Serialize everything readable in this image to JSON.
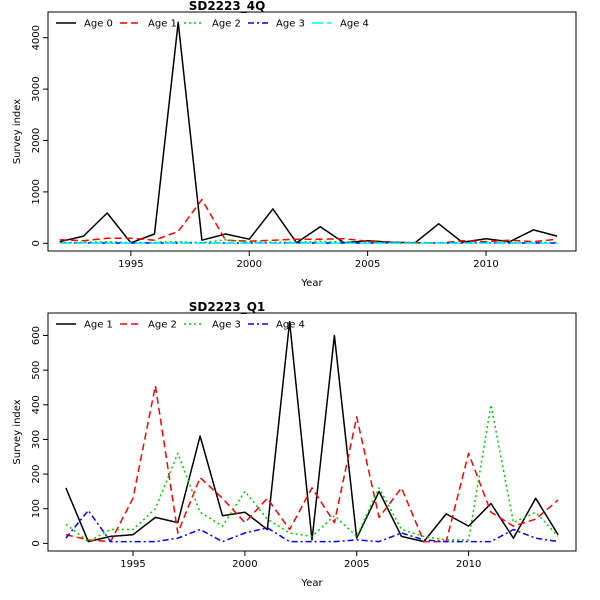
{
  "chart_data": [
    {
      "type": "line",
      "title": "SD2223_4Q",
      "xlabel": "Year",
      "ylabel": "Survey index",
      "xlim": [
        1991.5,
        2013.8
      ],
      "ylim": [
        -150,
        4500
      ],
      "xticks": [
        1995,
        2000,
        2005,
        2010
      ],
      "yticks": [
        0,
        1000,
        2000,
        3000,
        4000
      ],
      "legend_position": "top-left",
      "grid": false,
      "x": [
        1992,
        1993,
        1994,
        1995,
        1996,
        1997,
        1998,
        1999,
        2000,
        2001,
        2002,
        2003,
        2004,
        2005,
        2006,
        2007,
        2008,
        2009,
        2010,
        2011,
        2012,
        2013
      ],
      "series": [
        {
          "name": "Age 0",
          "color": "#000000",
          "dash": "solid",
          "values": [
            30,
            140,
            590,
            10,
            180,
            4300,
            60,
            180,
            80,
            670,
            10,
            320,
            10,
            50,
            20,
            10,
            380,
            20,
            90,
            30,
            260,
            140
          ]
        },
        {
          "name": "Age 1",
          "color": "#ff0000",
          "dash": "dashed",
          "values": [
            70,
            50,
            100,
            100,
            60,
            230,
            850,
            60,
            40,
            60,
            80,
            80,
            90,
            40,
            10,
            10,
            0,
            50,
            30,
            60,
            30,
            80
          ]
        },
        {
          "name": "Age 2",
          "color": "#00cd00",
          "dash": "dotted",
          "values": [
            10,
            20,
            30,
            10,
            20,
            30,
            10,
            70,
            20,
            20,
            20,
            40,
            20,
            10,
            10,
            10,
            5,
            10,
            10,
            20,
            10,
            20
          ]
        },
        {
          "name": "Age 3",
          "color": "#0000ff",
          "dash": "dashdot",
          "values": [
            5,
            5,
            5,
            5,
            5,
            5,
            5,
            5,
            5,
            5,
            5,
            5,
            5,
            5,
            5,
            5,
            5,
            5,
            5,
            5,
            5,
            5
          ]
        },
        {
          "name": "Age 4",
          "color": "#00ffff",
          "dash": "longdash",
          "values": [
            2,
            2,
            2,
            2,
            2,
            2,
            2,
            2,
            2,
            2,
            2,
            2,
            2,
            2,
            2,
            2,
            2,
            2,
            2,
            2,
            2,
            2
          ]
        }
      ]
    },
    {
      "type": "line",
      "title": "SD2223_Q1",
      "xlabel": "Year",
      "ylabel": "Survey index",
      "xlim": [
        1991.2,
        2014.8
      ],
      "ylim": [
        -22,
        665
      ],
      "xticks": [
        1995,
        2000,
        2005,
        2010
      ],
      "yticks": [
        0,
        100,
        200,
        300,
        400,
        500,
        600
      ],
      "legend_position": "top-left",
      "grid": false,
      "x": [
        1992,
        1993,
        1994,
        1995,
        1996,
        1997,
        1998,
        1999,
        2000,
        2001,
        2002,
        2003,
        2004,
        2005,
        2006,
        2007,
        2008,
        2009,
        2010,
        2011,
        2012,
        2013,
        2014
      ],
      "series": [
        {
          "name": "Age 1",
          "color": "#000000",
          "dash": "solid",
          "values": [
            160,
            5,
            20,
            25,
            75,
            60,
            310,
            80,
            90,
            40,
            640,
            10,
            600,
            15,
            150,
            20,
            5,
            85,
            50,
            115,
            15,
            130,
            25
          ]
        },
        {
          "name": "Age 2",
          "color": "#ff0000",
          "dash": "dashed",
          "values": [
            25,
            10,
            5,
            130,
            455,
            30,
            190,
            130,
            60,
            130,
            40,
            160,
            60,
            365,
            75,
            160,
            5,
            5,
            260,
            90,
            50,
            70,
            125
          ]
        },
        {
          "name": "Age 3",
          "color": "#00cd00",
          "dash": "dotted",
          "values": [
            55,
            5,
            40,
            40,
            100,
            260,
            90,
            50,
            150,
            70,
            30,
            20,
            80,
            20,
            160,
            40,
            20,
            10,
            10,
            400,
            60,
            90,
            20
          ]
        },
        {
          "name": "Age 4",
          "color": "#0000ff",
          "dash": "dashdot",
          "values": [
            15,
            95,
            5,
            5,
            5,
            15,
            40,
            5,
            30,
            45,
            5,
            5,
            5,
            10,
            5,
            30,
            10,
            5,
            5,
            5,
            40,
            15,
            5
          ]
        }
      ]
    }
  ]
}
